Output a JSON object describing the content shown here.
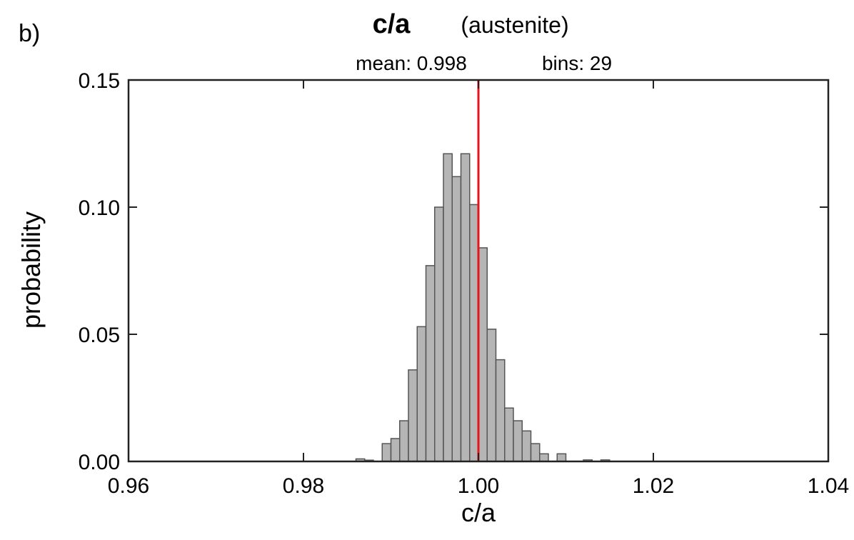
{
  "panel_label": "b)",
  "chart_data": {
    "type": "bar",
    "title": "c/a",
    "subtitle": "(austenite)",
    "info": {
      "mean_label": "mean: 0.998",
      "bins_label": "bins:  29"
    },
    "xlabel": "c/a",
    "ylabel": "probability",
    "xlim": [
      0.96,
      1.04
    ],
    "ylim": [
      0.0,
      0.15
    ],
    "xticks": [
      "0.96",
      "0.98",
      "1.00",
      "1.02",
      "1.04"
    ],
    "yticks": [
      "0.00",
      "0.05",
      "0.10",
      "0.15"
    ],
    "bin_width": 0.001,
    "bins": [
      {
        "x0": 0.986,
        "value": 0.001
      },
      {
        "x0": 0.987,
        "value": 0.0005
      },
      {
        "x0": 0.989,
        "value": 0.007
      },
      {
        "x0": 0.99,
        "value": 0.009
      },
      {
        "x0": 0.991,
        "value": 0.016
      },
      {
        "x0": 0.992,
        "value": 0.036
      },
      {
        "x0": 0.993,
        "value": 0.053
      },
      {
        "x0": 0.994,
        "value": 0.077
      },
      {
        "x0": 0.995,
        "value": 0.1
      },
      {
        "x0": 0.996,
        "value": 0.121
      },
      {
        "x0": 0.997,
        "value": 0.112
      },
      {
        "x0": 0.998,
        "value": 0.121
      },
      {
        "x0": 0.999,
        "value": 0.101
      },
      {
        "x0": 1.0,
        "value": 0.084
      },
      {
        "x0": 1.001,
        "value": 0.052
      },
      {
        "x0": 1.002,
        "value": 0.04
      },
      {
        "x0": 1.003,
        "value": 0.021
      },
      {
        "x0": 1.004,
        "value": 0.016
      },
      {
        "x0": 1.005,
        "value": 0.012
      },
      {
        "x0": 1.006,
        "value": 0.007
      },
      {
        "x0": 1.007,
        "value": 0.003
      },
      {
        "x0": 1.009,
        "value": 0.003
      },
      {
        "x0": 1.012,
        "value": 0.0006
      },
      {
        "x0": 1.014,
        "value": 0.0006
      }
    ],
    "mean": 0.998,
    "mean_line_value": 1.0,
    "colors": {
      "bar_fill": "#b5b5b5",
      "bar_stroke": "#555555",
      "mean_line": "#e8141b",
      "axis": "#222222"
    }
  }
}
